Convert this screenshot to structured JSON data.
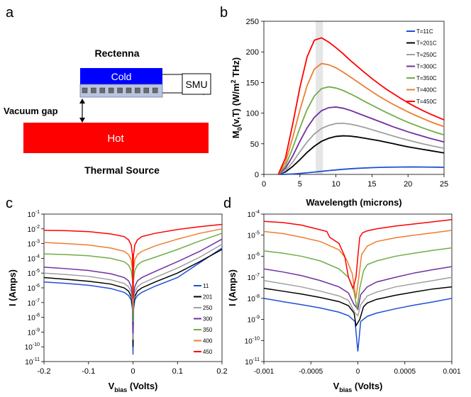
{
  "panels": {
    "a": {
      "letter": "a",
      "rectenna": "Rectenna",
      "cold": "Cold",
      "smu": "SMU",
      "vacuum_gap": "Vacuum gap",
      "hot": "Hot",
      "thermal_source": "Thermal Source",
      "colors": {
        "cold": "#0000ff",
        "hot": "#ff0000"
      }
    },
    "b": {
      "letter": "b"
    },
    "c": {
      "letter": "c"
    },
    "d": {
      "letter": "d"
    }
  },
  "chart_data": [
    {
      "panel": "b",
      "type": "line",
      "title": "",
      "xlabel": "Wavelength (microns)",
      "ylabel_main": "M",
      "ylabel_sub": "0",
      "ylabel_rest": "(v,T) (W/m",
      "ylabel_sup": "2",
      "ylabel_end": " THz)",
      "xlim": [
        0,
        25
      ],
      "ylim": [
        0,
        250
      ],
      "xticks": [
        0,
        5,
        10,
        15,
        20,
        25
      ],
      "yticks": [
        0,
        50,
        100,
        150,
        200,
        250
      ],
      "x": [
        2,
        3,
        4,
        5,
        6,
        7,
        8,
        9,
        10,
        11,
        12,
        13,
        14,
        15,
        16,
        17,
        18,
        19,
        20,
        21,
        22,
        23,
        24,
        25
      ],
      "highlight_band": [
        7.2,
        8.2
      ],
      "legend_position": "top-right",
      "series": [
        {
          "name": "T=11C",
          "color": "#1f4fd8",
          "values": [
            0,
            0.2,
            0.7,
            1.5,
            2.6,
            3.8,
            5.0,
            6.2,
            7.3,
            8.3,
            9.2,
            9.9,
            10.5,
            11.0,
            11.4,
            11.7,
            11.9,
            12.0,
            12.1,
            12.1,
            12.0,
            11.9,
            11.8,
            11.6
          ]
        },
        {
          "name": "T=201C",
          "color": "#000000",
          "values": [
            0,
            4,
            13,
            24,
            36,
            46,
            54,
            59,
            62,
            63,
            62.5,
            61,
            59,
            57,
            55,
            52.5,
            50,
            47.5,
            45,
            43,
            41,
            39,
            37,
            35
          ]
        },
        {
          "name": "T=250C",
          "color": "#a0a0a0",
          "values": [
            0,
            6,
            20,
            37,
            53,
            66,
            75,
            80,
            83,
            83.5,
            82,
            79.5,
            76.5,
            73,
            69.5,
            66,
            62.5,
            59,
            56,
            53,
            50,
            47.5,
            45,
            42.5
          ]
        },
        {
          "name": "T=300C",
          "color": "#7030a0",
          "values": [
            0,
            10,
            30,
            54,
            76,
            93,
            104,
            109,
            110,
            108,
            104.5,
            100,
            95.5,
            91,
            86.5,
            82,
            77.5,
            73.5,
            69.5,
            66,
            62.5,
            59,
            56,
            53
          ]
        },
        {
          "name": "T=350C",
          "color": "#70ad47",
          "values": [
            0,
            14,
            43,
            76,
            106,
            128,
            140,
            143,
            141,
            137,
            131.5,
            125.5,
            119,
            113,
            107,
            101,
            95.5,
            90,
            85,
            80.5,
            76,
            72,
            68,
            64.5
          ]
        },
        {
          "name": "T=400C",
          "color": "#ed7d31",
          "values": [
            0,
            20,
            60,
            105,
            145,
            172,
            181,
            179,
            174,
            167,
            159,
            151,
            143,
            135,
            127.5,
            120.5,
            114,
            108,
            102,
            96.5,
            91.5,
            86.5,
            82,
            78
          ]
        },
        {
          "name": "T=450C",
          "color": "#ff0000",
          "values": [
            0,
            27,
            82,
            142,
            192,
            219,
            223,
            216,
            207,
            197,
            186,
            176,
            166,
            156.5,
            147.5,
            139,
            131.5,
            124,
            117,
            110.5,
            104.5,
            99,
            94,
            89
          ]
        }
      ]
    },
    {
      "panel": "c",
      "type": "line",
      "title": "",
      "xlabel_main": "V",
      "xlabel_sub": "bias",
      "xlabel_rest": " (Volts)",
      "ylabel": "I (Amps)",
      "xlim": [
        -0.2,
        0.2
      ],
      "ylim_exp": [
        -11,
        -1
      ],
      "yscale": "log",
      "xticks": [
        "-0.2",
        "-0.1",
        "0",
        "0.1",
        "0.2"
      ],
      "yticks_exp": [
        -1,
        -2,
        -3,
        -4,
        -5,
        -6,
        -7,
        -8,
        -9,
        -10,
        -11
      ],
      "ytick_base": "10",
      "legend_position": "bottom-right",
      "x": [
        -0.2,
        -0.15,
        -0.1,
        -0.05,
        -0.02,
        -0.01,
        -0.004,
        -0.001,
        0,
        0.001,
        0.004,
        0.01,
        0.02,
        0.05,
        0.1,
        0.15,
        0.2
      ],
      "series": [
        {
          "name": "11",
          "color": "#1f4fd8",
          "values": [
            2.5e-06,
            2e-06,
            1.5e-06,
            9e-07,
            5e-07,
            3e-07,
            1.5e-07,
            3e-08,
            3e-11,
            3e-08,
            1.5e-07,
            3e-07,
            5e-07,
            1.3e-06,
            5e-06,
            5e-05,
            0.0005
          ]
        },
        {
          "name": "201",
          "color": "#000000",
          "values": [
            5e-06,
            3.8e-06,
            2.8e-06,
            1.8e-06,
            1e-06,
            6e-07,
            2.5e-07,
            5e-08,
            1e-10,
            5e-08,
            2.5e-07,
            6e-07,
            1e-06,
            2.5e-06,
            1e-05,
            6e-05,
            0.0004
          ]
        },
        {
          "name": "250",
          "color": "#a0a0a0",
          "values": [
            1e-05,
            8e-06,
            6e-06,
            3.5e-06,
            2e-06,
            1.2e-06,
            5e-07,
            1e-07,
            3e-10,
            1e-07,
            5e-07,
            1.2e-06,
            2e-06,
            5e-06,
            2.2e-05,
            0.00012,
            0.0009
          ]
        },
        {
          "name": "300",
          "color": "#7030a0",
          "values": [
            2.5e-05,
            2e-05,
            1.5e-05,
            9e-06,
            5e-06,
            3e-06,
            1.2e-06,
            2.5e-07,
            8e-10,
            2.5e-07,
            1.2e-06,
            3e-06,
            5e-06,
            1.3e-05,
            6e-05,
            0.0003,
            0.002
          ]
        },
        {
          "name": "350",
          "color": "#70ad47",
          "values": [
            0.0002,
            0.00018,
            0.00015,
            0.0001,
            6e-05,
            3.5e-05,
            1.5e-05,
            3e-06,
            5e-09,
            3e-06,
            1.5e-05,
            3.5e-05,
            6e-05,
            0.00012,
            0.0004,
            0.0015,
            0.005
          ]
        },
        {
          "name": "400",
          "color": "#ed7d31",
          "values": [
            0.0012,
            0.001,
            0.0008,
            0.0005,
            0.0003,
            0.00018,
            8e-05,
            1.5e-05,
            3e-08,
            1.5e-05,
            8e-05,
            0.00018,
            0.0003,
            0.0007,
            0.002,
            0.005,
            0.01
          ]
        },
        {
          "name": "450",
          "color": "#ff0000",
          "values": [
            0.008,
            0.0075,
            0.0065,
            0.0045,
            0.003,
            0.0018,
            0.0008,
            0.00015,
            2e-07,
            0.00015,
            0.0008,
            0.0018,
            0.003,
            0.005,
            0.009,
            0.014,
            0.02
          ]
        }
      ]
    },
    {
      "panel": "d",
      "type": "line",
      "title": "",
      "xlabel_main": "V",
      "xlabel_sub": "bias",
      "xlabel_rest": " (Volts)",
      "ylabel": "I (Amps)",
      "xlim": [
        -0.001,
        0.001
      ],
      "ylim_exp": [
        -11,
        -4
      ],
      "yscale": "log",
      "xticks": [
        "-0.001",
        "-0.0005",
        "0",
        "0.0005",
        "0.001"
      ],
      "yticks_exp": [
        -4,
        -5,
        -6,
        -7,
        -8,
        -9,
        -10,
        -11
      ],
      "ytick_base": "10",
      "series": [
        {
          "name": "11",
          "color": "#1f4fd8",
          "values": [
            [
              -0.001,
              1e-08
            ],
            [
              -0.0008,
              7e-09
            ],
            [
              -0.0006,
              5e-09
            ],
            [
              -0.0004,
              3.5e-09
            ],
            [
              -0.0002,
              2.2e-09
            ],
            [
              -0.0001,
              1.5e-09
            ],
            [
              -3e-05,
              8e-10
            ],
            [
              0,
              3e-11
            ],
            [
              3e-05,
              8e-10
            ],
            [
              0.0001,
              1.4e-09
            ],
            [
              0.0002,
              2e-09
            ],
            [
              0.0004,
              3.2e-09
            ],
            [
              0.0006,
              4.8e-09
            ],
            [
              0.0008,
              6.8e-09
            ],
            [
              0.001,
              1e-08
            ]
          ]
        },
        {
          "name": "201",
          "color": "#000000",
          "values": [
            [
              -0.001,
              3e-08
            ],
            [
              -0.0008,
              2.2e-08
            ],
            [
              -0.0006,
              1.6e-08
            ],
            [
              -0.0004,
              1.1e-08
            ],
            [
              -0.0002,
              7e-09
            ],
            [
              -0.0001,
              4.5e-09
            ],
            [
              -4e-05,
              2e-09
            ],
            [
              -2e-05,
              5e-10
            ],
            [
              2e-05,
              1e-09
            ],
            [
              6e-05,
              4e-09
            ],
            [
              0.0001,
              6e-09
            ],
            [
              0.0002,
              9e-09
            ],
            [
              0.0004,
              1.4e-08
            ],
            [
              0.0006,
              2e-08
            ],
            [
              0.0008,
              2.8e-08
            ],
            [
              0.001,
              3.5e-08
            ]
          ]
        },
        {
          "name": "250",
          "color": "#a0a0a0",
          "values": [
            [
              -0.001,
              7e-08
            ],
            [
              -0.0008,
              5e-08
            ],
            [
              -0.0006,
              3.5e-08
            ],
            [
              -0.0004,
              2.2e-08
            ],
            [
              -0.0002,
              1.3e-08
            ],
            [
              -0.0001,
              8e-09
            ],
            [
              -3e-05,
              2e-09
            ],
            [
              0,
              1.5e-09
            ],
            [
              3e-05,
              5e-09
            ],
            [
              0.0001,
              1.3e-08
            ],
            [
              0.0002,
              2e-08
            ],
            [
              0.0004,
              3.5e-08
            ],
            [
              0.0006,
              5e-08
            ],
            [
              0.0008,
              7e-08
            ],
            [
              0.001,
              1e-07
            ]
          ]
        },
        {
          "name": "300",
          "color": "#7030a0",
          "values": [
            [
              -0.001,
              2.5e-07
            ],
            [
              -0.0008,
              1.8e-07
            ],
            [
              -0.0006,
              1.2e-07
            ],
            [
              -0.0004,
              7e-08
            ],
            [
              -0.0002,
              3.5e-08
            ],
            [
              -0.0001,
              1.8e-08
            ],
            [
              -4e-05,
              5e-09
            ],
            [
              0,
              3e-09
            ],
            [
              3e-05,
              1.5e-08
            ],
            [
              0.0001,
              3.5e-08
            ],
            [
              0.0002,
              6e-08
            ],
            [
              0.0004,
              1e-07
            ],
            [
              0.0006,
              1.6e-07
            ],
            [
              0.0008,
              2.3e-07
            ],
            [
              0.001,
              3.2e-07
            ]
          ]
        },
        {
          "name": "350",
          "color": "#70ad47",
          "values": [
            [
              -0.001,
              1.8e-06
            ],
            [
              -0.0008,
              1.4e-06
            ],
            [
              -0.0006,
              1e-06
            ],
            [
              -0.0004,
              6e-07
            ],
            [
              -0.0002,
              2.5e-07
            ],
            [
              -0.0001,
              1e-07
            ],
            [
              -4e-05,
              2e-08
            ],
            [
              -1e-05,
              3e-09
            ],
            [
              2e-05,
              3e-08
            ],
            [
              6e-05,
              2e-07
            ],
            [
              0.0001,
              4e-07
            ],
            [
              0.0002,
              6e-07
            ],
            [
              0.0004,
              1e-06
            ],
            [
              0.0006,
              1.4e-06
            ],
            [
              0.0008,
              1.9e-06
            ],
            [
              0.001,
              2.5e-06
            ]
          ]
        },
        {
          "name": "400",
          "color": "#ed7d31",
          "values": [
            [
              -0.001,
              1.5e-05
            ],
            [
              -0.0008,
              1.2e-05
            ],
            [
              -0.0006,
              8e-06
            ],
            [
              -0.0004,
              5e-06
            ],
            [
              -0.0002,
              2e-06
            ],
            [
              -0.00012,
              7e-07
            ],
            [
              -6e-05,
              1.5e-07
            ],
            [
              -2e-05,
              1e-08
            ],
            [
              1e-05,
              1e-07
            ],
            [
              4e-05,
              1.2e-06
            ],
            [
              0.0001,
              3e-06
            ],
            [
              0.0002,
              5e-06
            ],
            [
              0.0004,
              7.5e-06
            ],
            [
              0.0006,
              1e-05
            ],
            [
              0.0008,
              1.3e-05
            ],
            [
              0.001,
              1.7e-05
            ]
          ]
        },
        {
          "name": "450",
          "color": "#ff0000",
          "values": [
            [
              -0.001,
              4.5e-05
            ],
            [
              -0.0008,
              4e-05
            ],
            [
              -0.0006,
              3e-05
            ],
            [
              -0.0004,
              1.8e-05
            ],
            [
              -0.00033,
              1.5e-05
            ],
            [
              -0.0003,
              8e-06
            ],
            [
              -0.0002,
              4e-06
            ],
            [
              -0.00014,
              1e-06
            ],
            [
              -0.0001,
              1e-07
            ],
            [
              -5e-05,
              3e-08
            ],
            [
              -2e-05,
              1e-07
            ],
            [
              0,
              1e-06
            ],
            [
              2e-05,
              8e-06
            ],
            [
              5e-05,
              1.3e-05
            ],
            [
              0.0001,
              1.6e-05
            ],
            [
              0.0002,
              2e-05
            ],
            [
              0.0004,
              2.7e-05
            ],
            [
              0.0006,
              3.4e-05
            ],
            [
              0.0008,
              4.3e-05
            ],
            [
              0.001,
              5.5e-05
            ]
          ]
        }
      ]
    }
  ]
}
